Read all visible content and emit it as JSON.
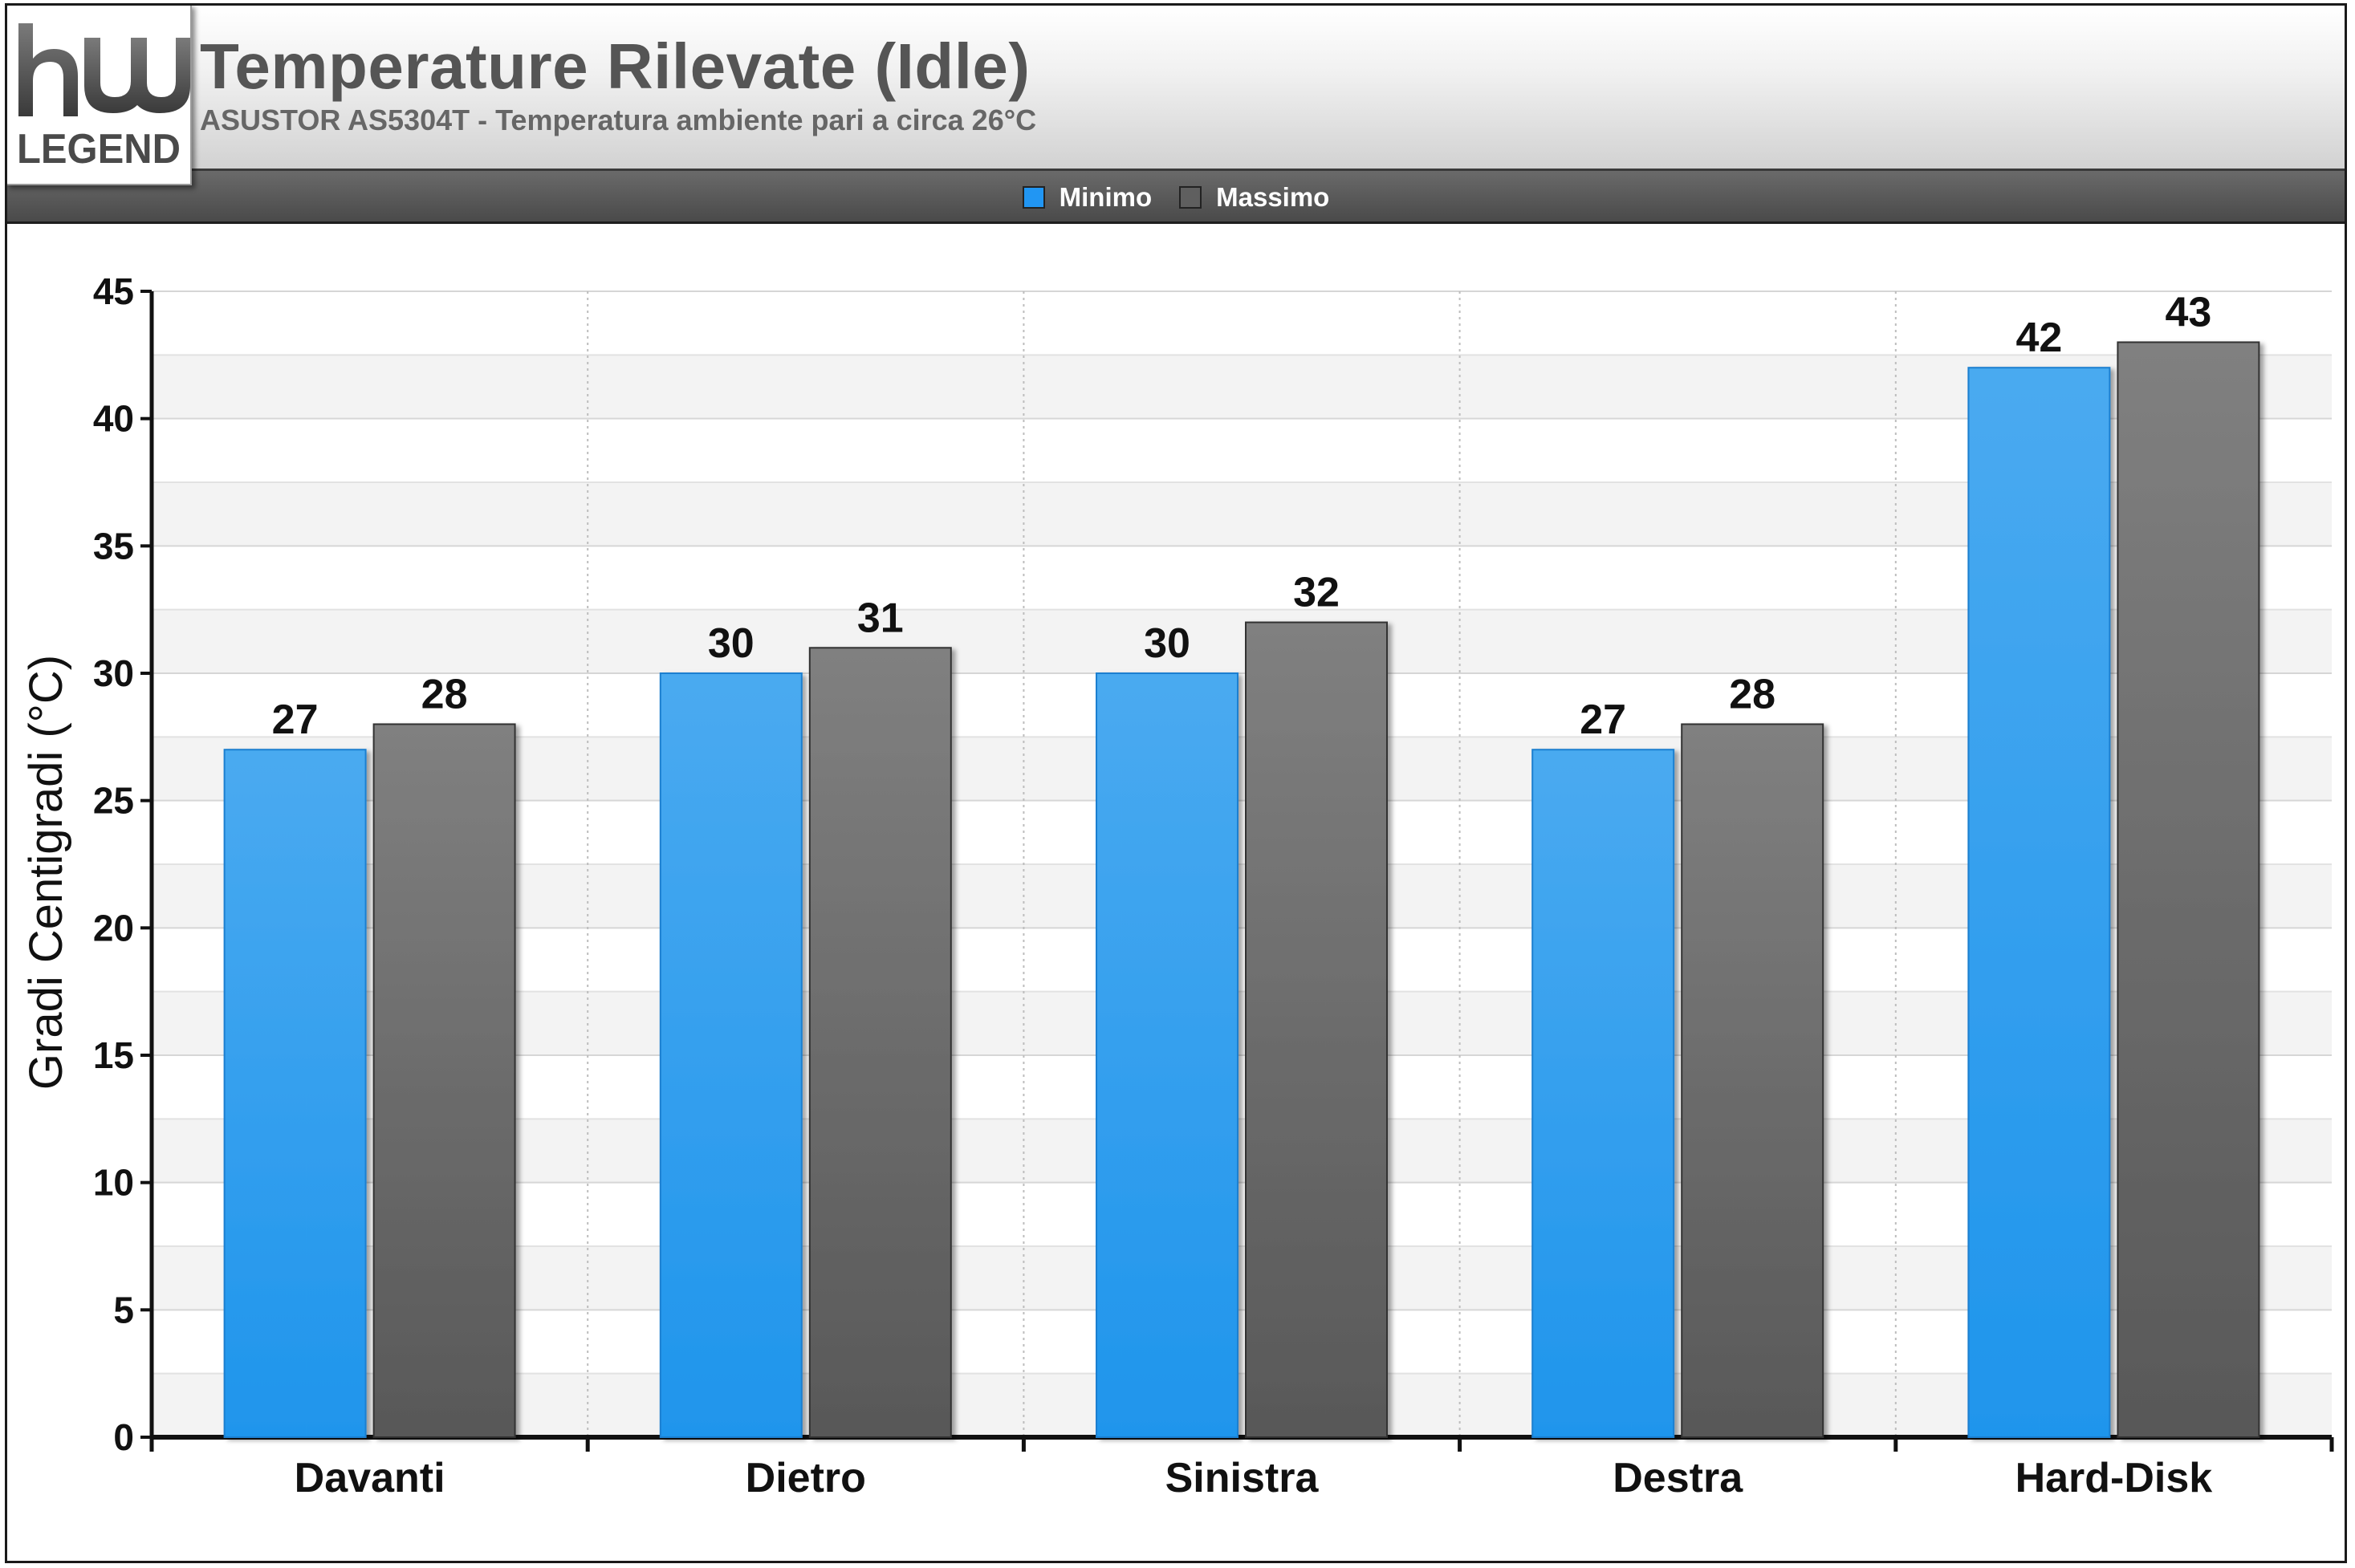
{
  "header": {
    "title": "Temperature Rilevate (Idle)",
    "subtitle": "ASUSTOR AS5304T - Temperatura ambiente pari a circa 26°C",
    "logo_text": "hwLEGEND"
  },
  "legend": {
    "items": [
      {
        "label": "Minimo",
        "color": "#2196f3"
      },
      {
        "label": "Massimo",
        "color": "#5f5f5f"
      }
    ]
  },
  "chart_data": {
    "type": "bar",
    "title": "Temperature Rilevate (Idle)",
    "subtitle": "ASUSTOR AS5304T - Temperatura ambiente pari a circa 26°C",
    "categories": [
      "Davanti",
      "Dietro",
      "Sinistra",
      "Destra",
      "Hard-Disk"
    ],
    "series": [
      {
        "name": "Minimo",
        "values": [
          27,
          30,
          30,
          27,
          42
        ],
        "color": "#2196f3"
      },
      {
        "name": "Massimo",
        "values": [
          28,
          31,
          32,
          28,
          43
        ],
        "color": "#5f5f5f"
      }
    ],
    "xlabel": "",
    "ylabel": "Gradi Centigradi (°C)",
    "ylim": [
      0,
      45
    ],
    "yticks": [
      0,
      5,
      10,
      15,
      20,
      25,
      30,
      35,
      40,
      45
    ],
    "grid": true,
    "data_labels": true,
    "legend_position": "top-center"
  }
}
